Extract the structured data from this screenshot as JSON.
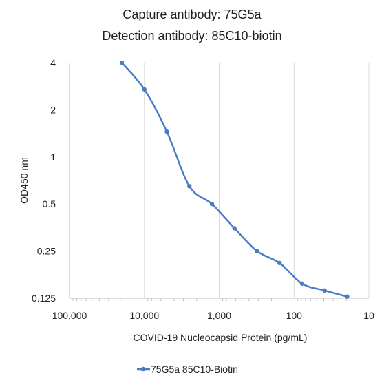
{
  "chart_data": {
    "type": "line",
    "title_lines": [
      "Capture antibody: 75G5a",
      "Detection antibody: 85C10-biotin"
    ],
    "xlabel": "COVID-19 Nucleocapsid Protein (pg/mL)",
    "ylabel": "OD450 nm",
    "x_scale": "log",
    "x_reversed": true,
    "y_scale": "log",
    "xlim": [
      100000,
      10
    ],
    "ylim": [
      0.125,
      4
    ],
    "x_ticks": [
      100000,
      10000,
      1000,
      100,
      10
    ],
    "x_tick_labels": [
      "100,000",
      "10,000",
      "1,000",
      "100",
      "10"
    ],
    "y_ticks": [
      4,
      2,
      1,
      0.5,
      0.25,
      0.125
    ],
    "y_tick_labels": [
      "4",
      "2",
      "1",
      "0.5",
      "0.25",
      "0.125"
    ],
    "grid": "major vertical",
    "legend_position": "bottom",
    "series": [
      {
        "name": "75G5a 85C10-Biotin",
        "color": "#4a7bc8",
        "x": [
          20000,
          10000,
          5000,
          2500,
          1250,
          625,
          312.5,
          156.25,
          78.125,
          39.0625,
          19.53125
        ],
        "y": [
          4.0,
          2.7,
          1.45,
          0.65,
          0.5,
          0.35,
          0.25,
          0.21,
          0.155,
          0.14,
          0.128
        ]
      }
    ]
  }
}
